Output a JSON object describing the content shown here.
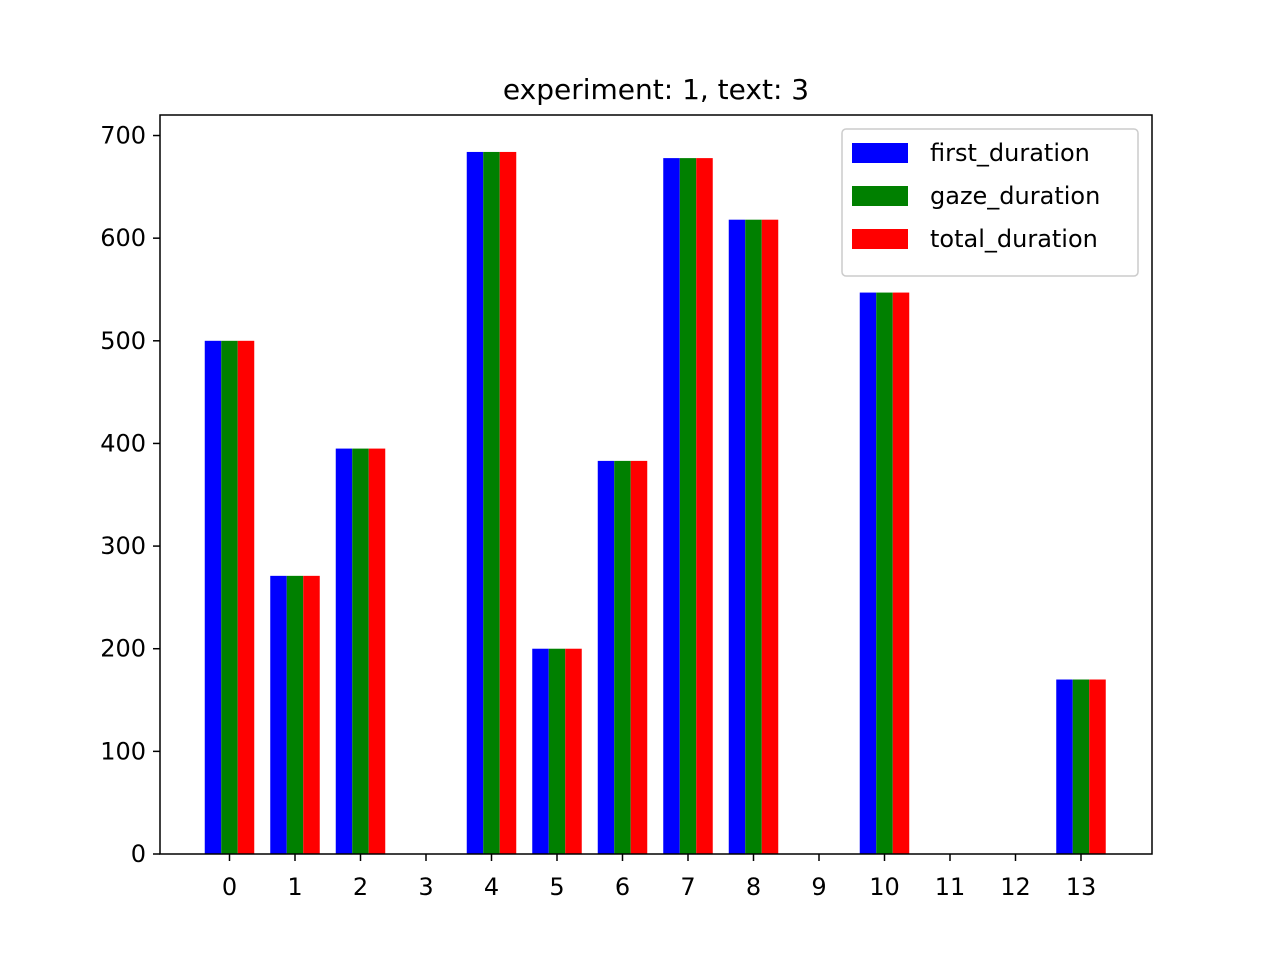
{
  "chart_data": {
    "type": "bar",
    "title": "experiment: 1, text: 3",
    "xlabel": "",
    "ylabel": "",
    "categories": [
      "0",
      "1",
      "2",
      "3",
      "4",
      "5",
      "6",
      "7",
      "8",
      "9",
      "10",
      "11",
      "12",
      "13"
    ],
    "ylim": [
      0,
      720
    ],
    "yticks": [
      0,
      100,
      200,
      300,
      400,
      500,
      600,
      700
    ],
    "grid": false,
    "legend_position": "top-right",
    "series": [
      {
        "name": "first_duration",
        "color": "#0000ff",
        "values": [
          500,
          271,
          395,
          0,
          684,
          200,
          383,
          678,
          618,
          0,
          547,
          0,
          0,
          170
        ]
      },
      {
        "name": "gaze_duration",
        "color": "#008000",
        "values": [
          500,
          271,
          395,
          0,
          684,
          200,
          383,
          678,
          618,
          0,
          547,
          0,
          0,
          170
        ]
      },
      {
        "name": "total_duration",
        "color": "#ff0000",
        "values": [
          500,
          271,
          395,
          0,
          684,
          200,
          383,
          678,
          618,
          0,
          547,
          0,
          0,
          170
        ]
      }
    ]
  }
}
